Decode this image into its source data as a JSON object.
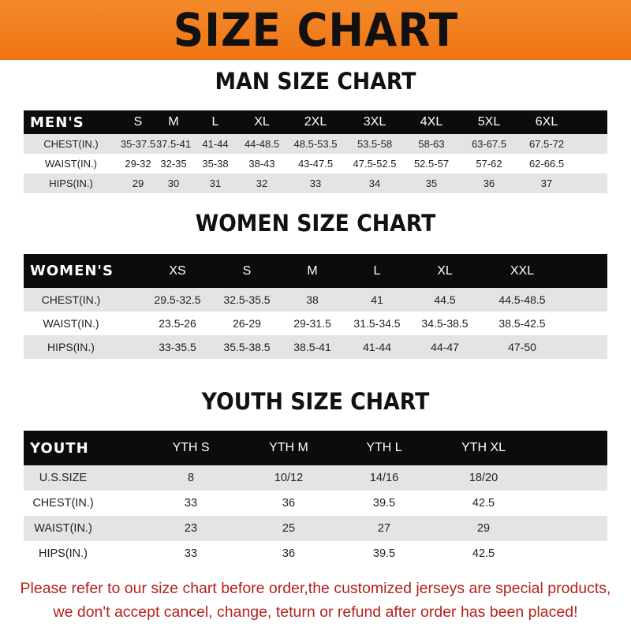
{
  "title": "SIZE CHART",
  "men": {
    "title": "MAN SIZE CHART",
    "header": [
      "MEN'S",
      "S",
      "M",
      "L",
      "XL",
      "2XL",
      "3XL",
      "4XL",
      "5XL",
      "6XL"
    ],
    "rows": [
      [
        "CHEST(IN.)",
        "35-37.5",
        "37.5-41",
        "41-44",
        "44-48.5",
        "48.5-53.5",
        "53.5-58",
        "58-63",
        "63-67.5",
        "67.5-72"
      ],
      [
        "WAIST(IN.)",
        "29-32",
        "32-35",
        "35-38",
        "38-43",
        "43-47.5",
        "47.5-52.5",
        "52.5-57",
        "57-62",
        "62-66.5"
      ],
      [
        "HIPS(IN.)",
        "29",
        "30",
        "31",
        "32",
        "33",
        "34",
        "35",
        "36",
        "37"
      ]
    ]
  },
  "women": {
    "title": "WOMEN SIZE CHART",
    "header": [
      "WOMEN'S",
      "XS",
      "S",
      "M",
      "L",
      "XL",
      "XXL"
    ],
    "rows": [
      [
        "CHEST(IN.)",
        "29.5-32.5",
        "32.5-35.5",
        "38",
        "41",
        "44.5",
        "44.5-48.5"
      ],
      [
        "WAIST(IN.)",
        "23.5-26",
        "26-29",
        "29-31.5",
        "31.5-34.5",
        "34.5-38.5",
        "38.5-42.5"
      ],
      [
        "HIPS(IN.)",
        "33-35.5",
        "35.5-38.5",
        "38.5-41",
        "41-44",
        "44-47",
        "47-50"
      ]
    ]
  },
  "youth": {
    "title": "YOUTH SIZE CHART",
    "header": [
      "YOUTH",
      "YTH S",
      "YTH M",
      "YTH L",
      "YTH XL"
    ],
    "rows": [
      [
        "U.S.SIZE",
        "8",
        "10/12",
        "14/16",
        "18/20"
      ],
      [
        "CHEST(IN.)",
        "33",
        "36",
        "39.5",
        "42.5"
      ],
      [
        "WAIST(IN.)",
        "23",
        "25",
        "27",
        "29"
      ],
      [
        "HIPS(IN.)",
        "33",
        "36",
        "39.5",
        "42.5"
      ]
    ]
  },
  "notice": [
    "Please refer to our size chart before order,the customized jerseys are special products,",
    "we don't accept cancel, change, teturn or refund after order has been placed!"
  ]
}
